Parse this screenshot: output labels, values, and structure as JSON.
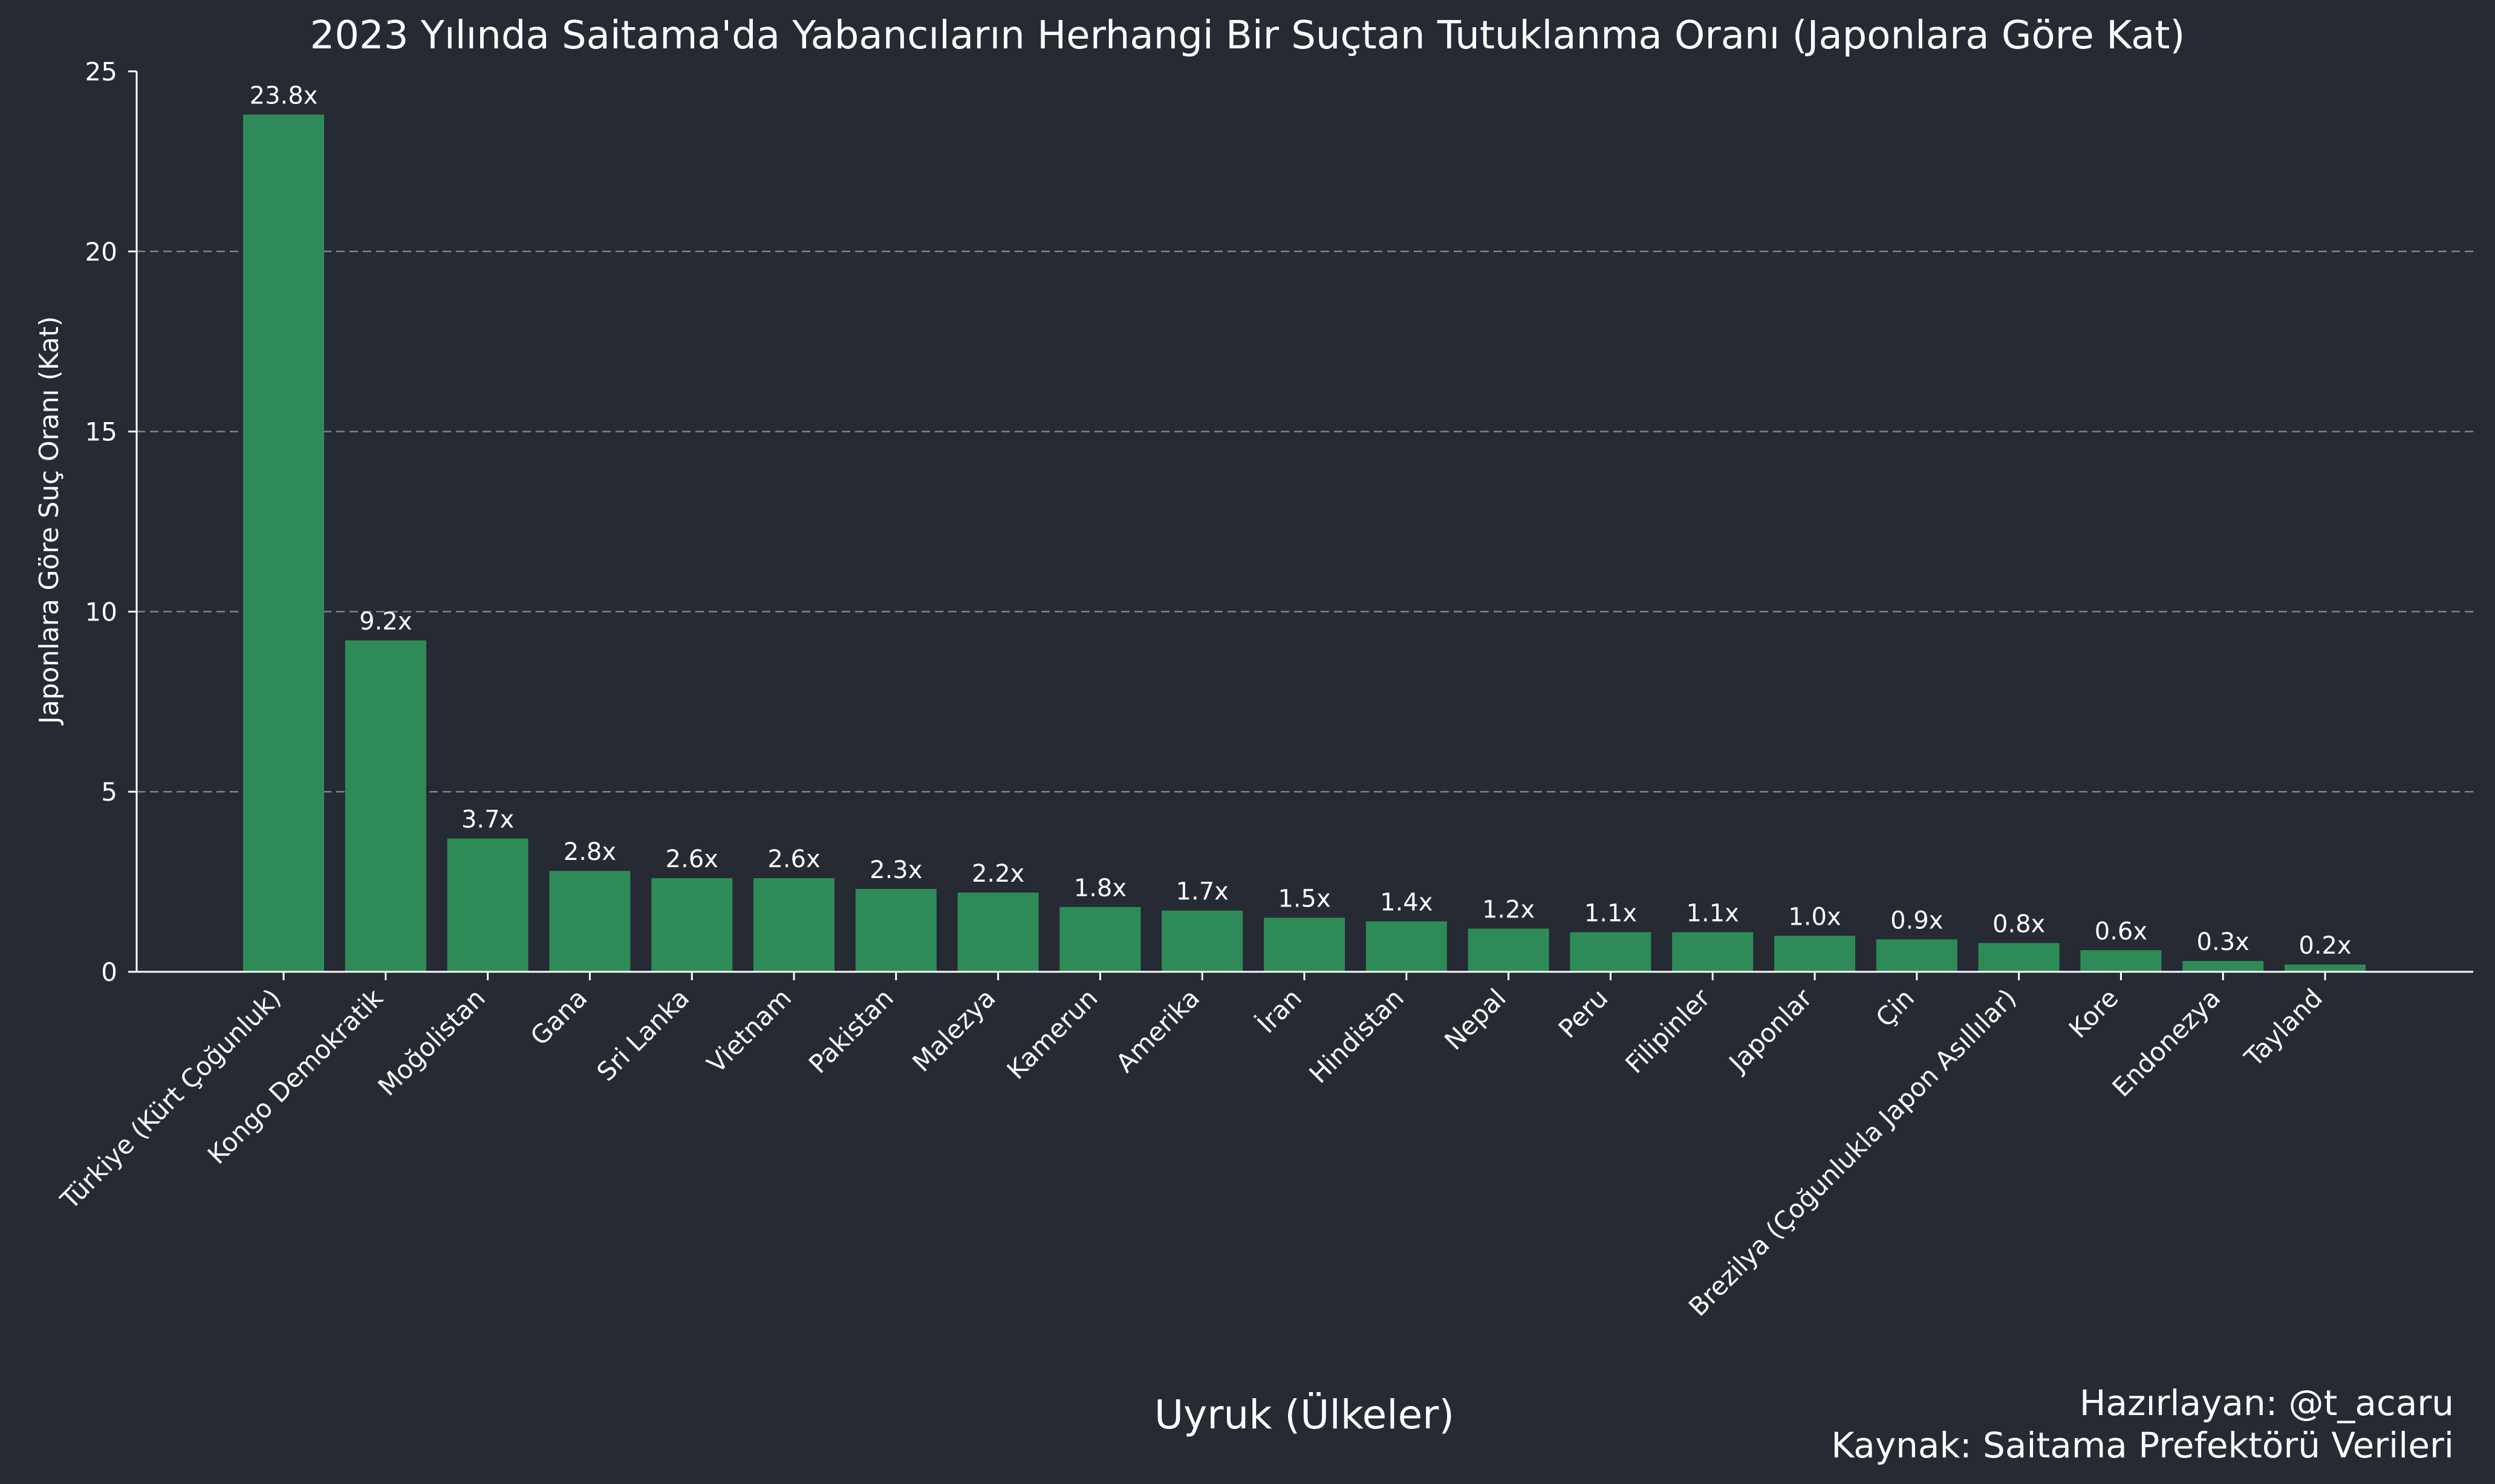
{
  "chart_data": {
    "type": "bar",
    "title": "2023 Yılında Saitama'da Yabancıların Herhangi Bir Suçtan Tutuklanma Oranı (Japonlara Göre Kat)",
    "xlabel": "Uyruk (Ülkeler)",
    "ylabel": "Japonlara Göre Suç Oranı (Kat)",
    "ylim": [
      0,
      25
    ],
    "yticks": [
      0,
      5,
      10,
      15,
      20,
      25
    ],
    "grid": "y-dashed",
    "categories": [
      "Türkiye (Kürt Çoğunluk)",
      "Kongo Demokratik",
      "Moğolistan",
      "Gana",
      "Sri Lanka",
      "Vietnam",
      "Pakistan",
      "Malezya",
      "Kamerun",
      "Amerika",
      "İran",
      "Hindistan",
      "Nepal",
      "Peru",
      "Filipinler",
      "Japonlar",
      "Çin",
      "Brezilya (Çoğunlukla Japon Asıllılar)",
      "Kore",
      "Endonezya",
      "Tayland"
    ],
    "values": [
      23.8,
      9.2,
      3.7,
      2.8,
      2.6,
      2.6,
      2.3,
      2.2,
      1.8,
      1.7,
      1.5,
      1.4,
      1.2,
      1.1,
      1.1,
      1.0,
      0.9,
      0.8,
      0.6,
      0.3,
      0.2
    ],
    "value_labels": [
      "23.8x",
      "9.2x",
      "3.7x",
      "2.8x",
      "2.6x",
      "2.6x",
      "2.3x",
      "2.2x",
      "1.8x",
      "1.7x",
      "1.5x",
      "1.4x",
      "1.2x",
      "1.1x",
      "1.1x",
      "1.0x",
      "0.9x",
      "0.8x",
      "0.6x",
      "0.3x",
      "0.2x"
    ],
    "bar_color": "#2e8b57",
    "background_color": "#252a33",
    "annotations": [
      "Hazırlayan: @t_acaru",
      "Kaynak: Saitama Prefektörü Verileri"
    ]
  }
}
